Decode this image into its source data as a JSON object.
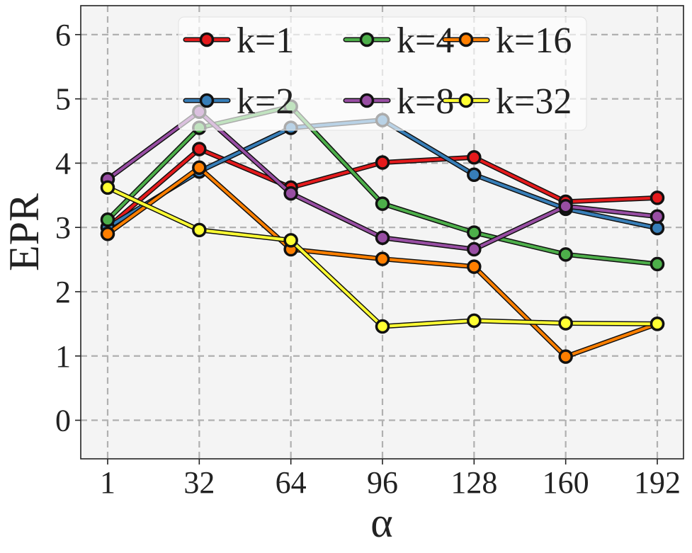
{
  "chart_data": {
    "type": "line",
    "title": "",
    "xlabel": "α",
    "ylabel": "EPR",
    "x": [
      1,
      32,
      64,
      96,
      128,
      160,
      192
    ],
    "x_tick_labels": [
      "1",
      "32",
      "64",
      "96",
      "128",
      "160",
      "192"
    ],
    "y_ticks": [
      0,
      1,
      2,
      3,
      4,
      5,
      6
    ],
    "ylim": [
      -0.6,
      6.45
    ],
    "grid": true,
    "legend_position": "top-center",
    "series": [
      {
        "name": "k=1",
        "color": "#e41a1c",
        "values": [
          3.0,
          4.22,
          3.62,
          4.01,
          4.09,
          3.4,
          3.46
        ]
      },
      {
        "name": "k=2",
        "color": "#377eb8",
        "values": [
          3.0,
          3.87,
          4.55,
          4.67,
          3.82,
          3.29,
          2.99
        ]
      },
      {
        "name": "k=4",
        "color": "#4daf4a",
        "values": [
          3.12,
          4.55,
          4.88,
          3.37,
          2.92,
          2.58,
          2.43
        ]
      },
      {
        "name": "k=8",
        "color": "#984ea3",
        "values": [
          3.75,
          4.8,
          3.53,
          2.84,
          2.66,
          3.33,
          3.17
        ]
      },
      {
        "name": "k=16",
        "color": "#ff7f00",
        "values": [
          2.9,
          3.93,
          2.66,
          2.51,
          2.39,
          0.99,
          1.5
        ]
      },
      {
        "name": "k=32",
        "color": "#ffff33",
        "values": [
          3.62,
          2.96,
          2.8,
          1.46,
          1.55,
          1.51,
          1.5
        ]
      }
    ]
  }
}
